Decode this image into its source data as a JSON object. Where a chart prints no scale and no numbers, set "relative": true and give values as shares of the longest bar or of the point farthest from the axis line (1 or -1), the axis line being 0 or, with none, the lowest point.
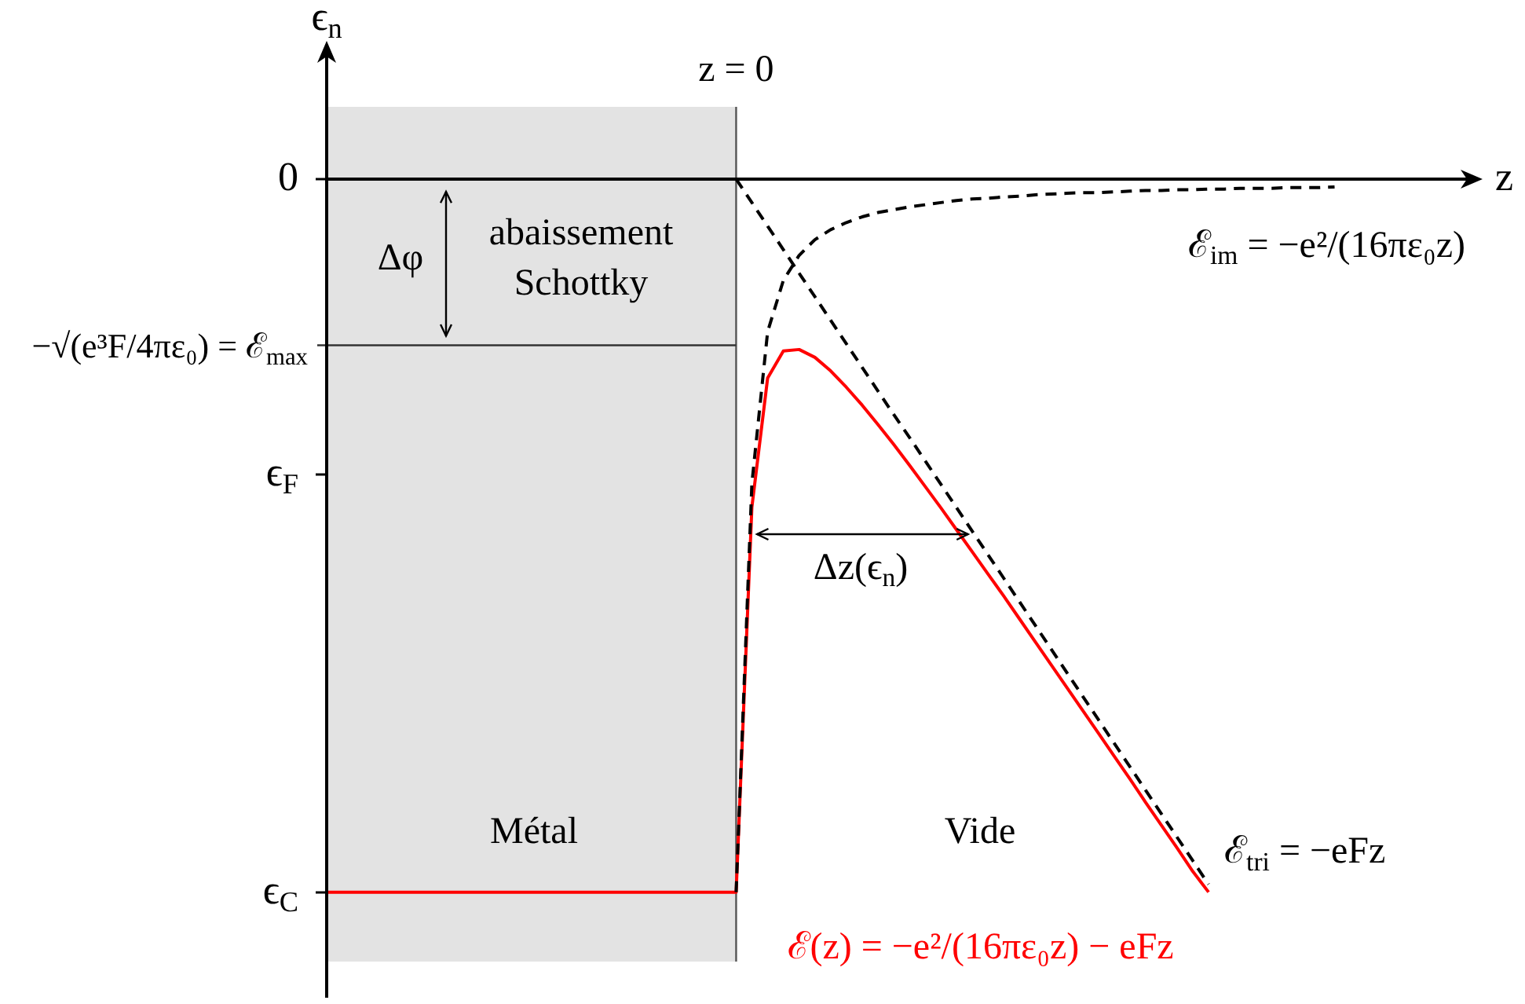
{
  "chart_data": {
    "type": "line",
    "relative": true,
    "ylabel": "ϵ$_{n}$",
    "xlabel": "z",
    "marker": "none",
    "categories": [
      null,
      null,
      null,
      null,
      null,
      null,
      null,
      null,
      null,
      null,
      null,
      null,
      null,
      null,
      null,
      null,
      null,
      null,
      null,
      null,
      null,
      null,
      null,
      null,
      null,
      null,
      null,
      null,
      null,
      null,
      null,
      null,
      null,
      null,
      null,
      null,
      null,
      null,
      null,
      null,
      null,
      null,
      null,
      null,
      null,
      null,
      null,
      null,
      null,
      null,
      null,
      null,
      null,
      null,
      null,
      null,
      null,
      null,
      null,
      null,
      null,
      null,
      null,
      null,
      null,
      null,
      null,
      null,
      null,
      null,
      null,
      null,
      null,
      null
    ],
    "series": [
      {
        "name": "ℰ$_{im}$ = −e²/(16πε₀z)",
        "color": "#000000",
        "line_style": "dashed",
        "values": [
          null,
          null,
          null,
          null,
          null,
          null,
          null,
          null,
          null,
          null,
          null,
          null,
          null,
          null,
          null,
          null,
          null,
          null,
          null,
          null,
          null,
          null,
          null,
          null,
          null,
          null,
          -1,
          -0.427,
          -0.214,
          -0.142,
          -0.107,
          -0.085,
          -0.071,
          -0.061,
          -0.053,
          -0.047,
          -0.043,
          -0.039,
          -0.036,
          -0.033,
          -0.03,
          -0.028,
          -0.027,
          -0.025,
          -0.024,
          -0.022,
          -0.021,
          -0.02,
          -0.019,
          -0.019,
          -0.018,
          -0.017,
          -0.016,
          -0.016,
          -0.015,
          -0.015,
          -0.014,
          -0.014,
          -0.013,
          -0.013,
          -0.013,
          -0.012,
          -0.012,
          -0.012,
          -0.011,
          null,
          null,
          null,
          null,
          null,
          null,
          null,
          null,
          null
        ]
      },
      {
        "name": "ℰ$_{tri}$ = −eFz",
        "color": "#000000",
        "line_style": "dashed",
        "values": [
          null,
          null,
          null,
          null,
          null,
          null,
          null,
          null,
          null,
          null,
          null,
          null,
          null,
          null,
          null,
          null,
          null,
          null,
          null,
          null,
          null,
          null,
          null,
          null,
          null,
          null,
          0,
          -0.033,
          -0.066,
          -0.099,
          -0.132,
          -0.165,
          -0.198,
          -0.231,
          -0.264,
          -0.297,
          -0.33,
          -0.362,
          -0.395,
          -0.428,
          -0.461,
          -0.494,
          -0.527,
          -0.56,
          -0.593,
          -0.626,
          -0.659,
          -0.692,
          -0.725,
          -0.758,
          -0.791,
          -0.824,
          -0.857,
          -0.89,
          -0.923,
          -0.956,
          -0.989,
          null,
          null,
          null,
          null,
          null,
          null,
          null,
          null,
          null,
          null,
          null,
          null,
          null,
          null,
          null,
          null,
          null
        ]
      },
      {
        "name": "ℰ(z) = −e²/(16πε₀z) − eFz",
        "color": "#ff0000",
        "line_style": "solid",
        "values": [
          -1,
          -1,
          -1,
          -1,
          -1,
          -1,
          -1,
          -1,
          -1,
          -1,
          -1,
          -1,
          -1,
          -1,
          -1,
          -1,
          -1,
          -1,
          -1,
          -1,
          -1,
          -1,
          -1,
          -1,
          -1,
          -1,
          -1,
          -0.46,
          -0.279,
          -0.241,
          -0.239,
          -0.25,
          -0.269,
          -0.292,
          -0.317,
          -0.344,
          -0.372,
          -0.401,
          -0.431,
          -0.461,
          -0.492,
          -0.523,
          -0.554,
          -0.585,
          -0.617,
          -0.649,
          -0.681,
          -0.713,
          -0.745,
          -0.777,
          -0.809,
          -0.841,
          -0.874,
          -0.906,
          -0.938,
          -0.971,
          -1,
          null,
          null,
          null,
          null,
          null,
          null,
          null,
          null,
          null,
          null,
          null,
          null,
          null,
          null,
          null,
          null,
          null
        ]
      }
    ],
    "ref_lines": [
      {
        "axis": "y",
        "value": -0.233,
        "label": "−√(e³F/4πε₀) = ℰ$_{max}$",
        "color": "#333333"
      }
    ],
    "annotations": [
      "0",
      "ϵ$_{F}$",
      "ϵ$_{C}$",
      "Δφ",
      "abaissement Schottky",
      "Δz(ϵ$_{n}$)",
      "Métal",
      "Vide",
      "z = 0"
    ]
  }
}
